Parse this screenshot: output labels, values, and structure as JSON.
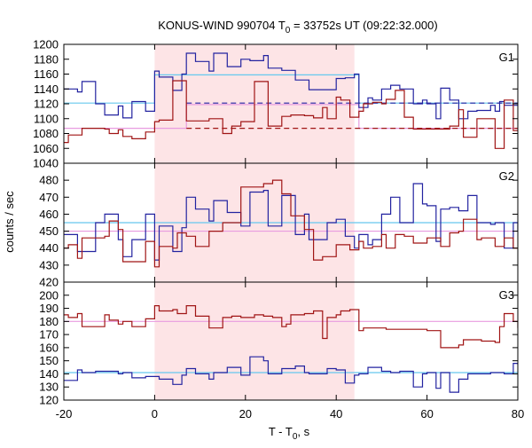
{
  "title_main": "KONUS-WIND 990704 T",
  "title_sub": "0",
  "title_rest": " = 33752s UT (09:22:32.000)",
  "xlabel_main": "T - T",
  "xlabel_sub": "0",
  "xlabel_rest": ", s",
  "ylabel": "counts / sec",
  "colors": {
    "blue": "#2323a0",
    "red": "#a01515",
    "cyan": "#66c8ee",
    "pink": "#e89be0",
    "shade": "#fde4e6"
  },
  "chart_data": {
    "type": "line",
    "xlim": [
      -20,
      80
    ],
    "x_ticks": [
      -20,
      0,
      20,
      40,
      60,
      80
    ],
    "shaded_interval": [
      0,
      44
    ],
    "panels": [
      {
        "label": "G1",
        "ylim": [
          1040,
          1200
        ],
        "y_ticks": [
          1040,
          1060,
          1080,
          1100,
          1120,
          1140,
          1160,
          1180,
          1200
        ],
        "series": [
          {
            "color_key": "blue",
            "edges": [
              -20,
              -17,
              -16,
              -13,
              -11,
              -8,
              -7,
              -5,
              -2,
              0,
              1,
              4,
              6,
              7,
              9,
              12,
              13,
              16,
              19,
              21,
              24,
              25,
              28,
              31,
              33,
              34,
              38,
              40,
              42,
              44,
              45,
              47,
              48,
              50,
              52,
              54,
              57,
              59,
              60,
              62,
              63,
              65,
              67,
              69,
              71,
              74,
              75,
              76,
              77,
              79,
              80
            ],
            "values": [
              1140,
              1136,
              1150,
              1120,
              1105,
              1117,
              1101,
              1123,
              1110,
              1164,
              1156,
              1138,
              1160,
              1188,
              1177,
              1164,
              1188,
              1170,
              1180,
              1178,
              1185,
              1168,
              1165,
              1152,
              1152,
              1139,
              1139,
              1154,
              1155,
              1160,
              1115,
              1128,
              1125,
              1140,
              1145,
              1140,
              1120,
              1125,
              1120,
              1100,
              1141,
              1125,
              1100,
              1110,
              1111,
              1118,
              1110,
              1123,
              1118,
              1118
            ]
          },
          {
            "color_key": "red",
            "edges": [
              -20,
              -19,
              -17,
              -16,
              -11,
              -10,
              -8,
              -7,
              -5,
              -2,
              0,
              1,
              4,
              5,
              7,
              9,
              12,
              15,
              17,
              19,
              22,
              24,
              25,
              26,
              28,
              29,
              30,
              33,
              35,
              37,
              38,
              40,
              41,
              43,
              45,
              46,
              48,
              50,
              51,
              53,
              55,
              57,
              60,
              61,
              63,
              65,
              67,
              68,
              71,
              72,
              75,
              76,
              77,
              79,
              80
            ],
            "values": [
              1068,
              1078,
              1078,
              1087,
              1086,
              1080,
              1085,
              1076,
              1073,
              1082,
              1096,
              1098,
              1151,
              1151,
              1097,
              1097,
              1100,
              1080,
              1090,
              1096,
              1150,
              1150,
              1090,
              1090,
              1103,
              1103,
              1105,
              1104,
              1101,
              1115,
              1100,
              1129,
              1125,
              1102,
              1110,
              1120,
              1122,
              1120,
              1126,
              1138,
              1102,
              1086,
              1086,
              1086,
              1086,
              1090,
              1112,
              1075,
              1100,
              1100,
              1060,
              1060,
              1125,
              1084,
              1084
            ]
          }
        ],
        "baselines": [
          {
            "color_key": "cyan",
            "segments": [
              [
                -20,
                0,
                1121
              ],
              [
                0,
                45,
                1159
              ],
              [
                45,
                80,
                1121
              ]
            ]
          },
          {
            "color_key": "pink",
            "segments": [
              [
                -20,
                7,
                1087
              ],
              [
                7,
                45,
                1119
              ],
              [
                45,
                80,
                1087
              ]
            ]
          },
          {
            "color_key": "blue",
            "dashed": true,
            "segments": [
              [
                7,
                80,
                1121
              ]
            ]
          },
          {
            "color_key": "red",
            "dashed": true,
            "segments": [
              [
                7,
                80,
                1087
              ]
            ]
          }
        ]
      },
      {
        "label": "G2",
        "ylim": [
          420,
          490
        ],
        "y_ticks": [
          420,
          430,
          440,
          450,
          460,
          470,
          480
        ],
        "series": [
          {
            "color_key": "blue",
            "edges": [
              -20,
              -17,
              -16,
              -13,
              -11,
              -8,
              -7,
              -5,
              -2,
              0,
              1,
              4,
              6,
              7,
              9,
              12,
              13,
              16,
              19,
              21,
              24,
              25,
              28,
              31,
              33,
              34,
              38,
              40,
              42,
              44,
              45,
              47,
              48,
              50,
              52,
              54,
              57,
              59,
              60,
              62,
              63,
              65,
              67,
              69,
              71,
              74,
              75,
              76,
              77,
              79,
              80
            ],
            "values": [
              448,
              438,
              438,
              455,
              460,
              445,
              435,
              445,
              460,
              433,
              453,
              438,
              452,
              470,
              463,
              456,
              468,
              461,
              453,
              473,
              474,
              453,
              471,
              448,
              460,
              445,
              455,
              457,
              447,
              440,
              448,
              442,
              445,
              460,
              470,
              455,
              478,
              466,
              465,
              444,
              463,
              464,
              462,
              471,
              455,
              454,
              455,
              455,
              440,
              455,
              450
            ]
          },
          {
            "color_key": "red",
            "edges": [
              -20,
              -19,
              -17,
              -16,
              -11,
              -10,
              -8,
              -7,
              -5,
              -2,
              0,
              1,
              4,
              5,
              7,
              9,
              12,
              15,
              17,
              19,
              22,
              24,
              25,
              26,
              28,
              29,
              30,
              33,
              35,
              37,
              38,
              40,
              41,
              43,
              45,
              46,
              48,
              50,
              51,
              53,
              55,
              57,
              60,
              61,
              63,
              65,
              67,
              68,
              71,
              72,
              75,
              76,
              77,
              79,
              80
            ],
            "values": [
              440,
              442,
              434,
              446,
              447,
              456,
              451,
              432,
              432,
              444,
              429,
              441,
              440,
              449,
              447,
              441,
              450,
              455,
              455,
              476,
              476,
              478,
              478,
              480,
              472,
              472,
              459,
              451,
              433,
              435,
              435,
              442,
              442,
              439,
              444,
              440,
              441,
              448,
              440,
              448,
              447,
              443,
              446,
              446,
              441,
              449,
              450,
              457,
              445,
              446,
              441,
              441,
              446,
              440,
              440
            ]
          }
        ],
        "baselines": [
          {
            "color_key": "cyan",
            "segments": [
              [
                -20,
                80,
                455
              ]
            ]
          },
          {
            "color_key": "pink",
            "segments": [
              [
                -20,
                80,
                450
              ]
            ]
          }
        ]
      },
      {
        "label": "G3",
        "ylim": [
          120,
          210
        ],
        "y_ticks": [
          120,
          130,
          140,
          150,
          160,
          170,
          180,
          190,
          200
        ],
        "series": [
          {
            "color_key": "blue",
            "edges": [
              -20,
              -17,
              -16,
              -13,
              -11,
              -8,
              -7,
              -5,
              -2,
              0,
              1,
              4,
              6,
              7,
              9,
              12,
              13,
              16,
              19,
              21,
              24,
              25,
              28,
              31,
              33,
              34,
              38,
              40,
              42,
              44,
              45,
              47,
              48,
              50,
              52,
              54,
              57,
              59,
              60,
              62,
              63,
              65,
              67,
              69,
              71,
              74,
              75,
              76,
              77,
              79,
              80
            ],
            "values": [
              135,
              143,
              141,
              142,
              142,
              140,
              141,
              137,
              138,
              138,
              136,
              132,
              139,
              144,
              140,
              136,
              141,
              145,
              139,
              153,
              150,
              140,
              144,
              146,
              141,
              140,
              144,
              143,
              133,
              139,
              140,
              145,
              145,
              142,
              141,
              142,
              130,
              140,
              141,
              129,
              141,
              126,
              136,
              140,
              140,
              141,
              141,
              141,
              140,
              148,
              147
            ]
          },
          {
            "color_key": "red",
            "edges": [
              -20,
              -19,
              -17,
              -16,
              -11,
              -10,
              -8,
              -7,
              -5,
              -2,
              0,
              1,
              4,
              5,
              7,
              9,
              12,
              15,
              17,
              19,
              22,
              24,
              25,
              26,
              28,
              29,
              30,
              33,
              35,
              37,
              38,
              40,
              41,
              43,
              45,
              46,
              48,
              50,
              51,
              53,
              55,
              57,
              60,
              61,
              63,
              65,
              67,
              68,
              71,
              72,
              75,
              76,
              77,
              79,
              80
            ],
            "values": [
              185,
              183,
              186,
              176,
              185,
              181,
              178,
              180,
              176,
              182,
              192,
              188,
              189,
              186,
              192,
              184,
              175,
              183,
              184,
              183,
              185,
              184,
              184,
              183,
              176,
              178,
              185,
              186,
              188,
              167,
              183,
              185,
              188,
              189,
              173,
              175,
              175,
              175,
              174,
              174,
              174,
              174,
              173,
              173,
              160,
              160,
              162,
              166,
              166,
              165,
              164,
              176,
              186,
              180,
              175
            ]
          }
        ],
        "baselines": [
          {
            "color_key": "cyan",
            "segments": [
              [
                -20,
                80,
                141
              ]
            ]
          },
          {
            "color_key": "pink",
            "segments": [
              [
                -20,
                80,
                180
              ]
            ]
          }
        ]
      }
    ]
  }
}
